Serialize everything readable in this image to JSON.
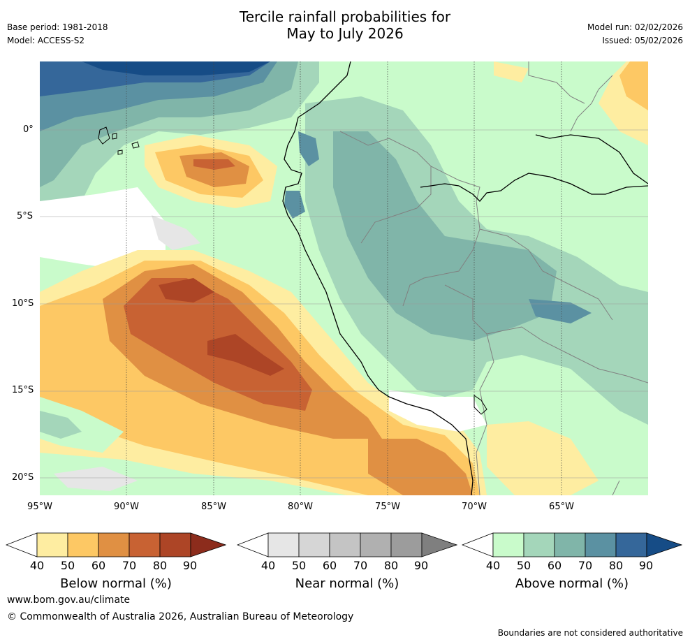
{
  "title_line1": "Tercile rainfall probabilities for",
  "title_line2": "May to July 2026",
  "base_period": "Base period: 1981-2018",
  "model": "Model: ACCESS-S2",
  "model_run": "Model run: 02/02/2026",
  "issued": "Issued: 05/02/2026",
  "x_ticks": [
    "95°W",
    "90°W",
    "85°W",
    "80°W",
    "75°W",
    "70°W",
    "65°W"
  ],
  "y_ticks": [
    "0°",
    "5°S",
    "10°S",
    "15°S",
    "20°S"
  ],
  "colorbars": [
    {
      "label": "Below normal (%)",
      "ticks": [
        "40",
        "50",
        "60",
        "70",
        "80",
        "90"
      ],
      "colors": [
        "#ffffff",
        "#feeda1",
        "#fdc864",
        "#e09043",
        "#c86233",
        "#ad4526",
        "#8c2c1c"
      ]
    },
    {
      "label": "Near normal (%)",
      "ticks": [
        "40",
        "50",
        "60",
        "70",
        "80",
        "90"
      ],
      "colors": [
        "#ffffff",
        "#e6e6e6",
        "#d6d6d6",
        "#c4c4c4",
        "#b0b0b0",
        "#9c9c9c",
        "#7f7f7f"
      ]
    },
    {
      "label": "Above normal (%)",
      "ticks": [
        "40",
        "50",
        "60",
        "70",
        "80",
        "90"
      ],
      "colors": [
        "#ffffff",
        "#c9fbcb",
        "#a4d6ba",
        "#80b5a9",
        "#5b91a2",
        "#35679a",
        "#164c86"
      ]
    }
  ],
  "footer_url": "www.bom.gov.au/climate",
  "footer_copyright": "© Commonwealth of Australia 2026, Australian Bureau of Meteorology",
  "disclaimer": "Boundaries are not considered authoritative"
}
